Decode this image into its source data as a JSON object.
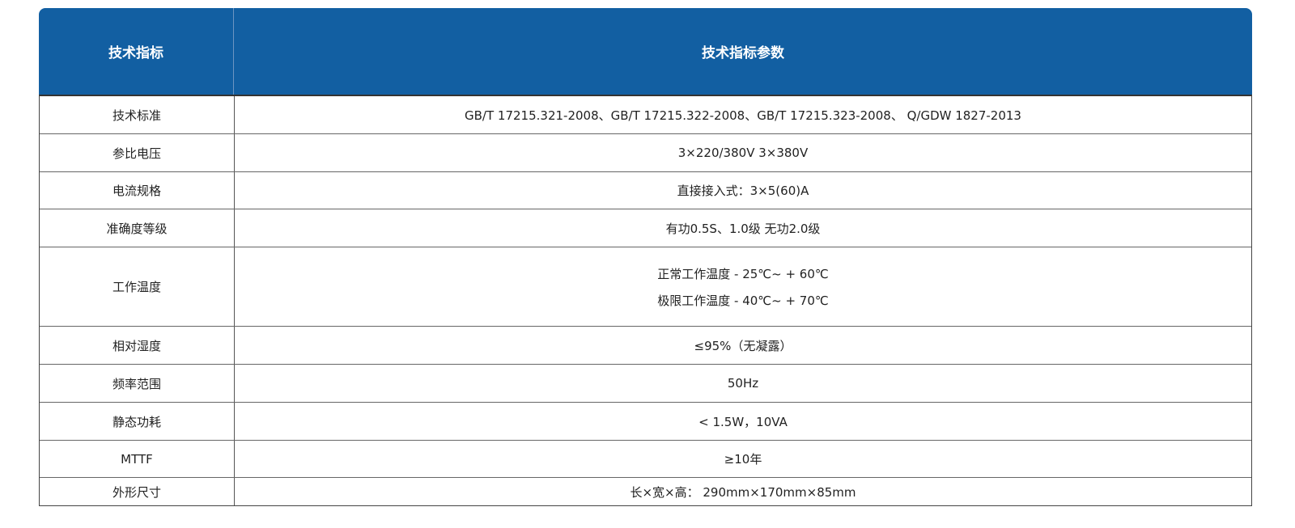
{
  "header": {
    "col1": "技术指标",
    "col2": "技术指标参数"
  },
  "colors": {
    "header_bg": "#125fa2"
  },
  "rows": [
    {
      "name": "技术标准",
      "values": [
        "GB/T 17215.321-2008、GB/T 17215.322-2008、GB/T 17215.323-2008、 Q/GDW 1827-2013"
      ]
    },
    {
      "name": "参比电压",
      "values": [
        "3×220/380V  3×380V"
      ]
    },
    {
      "name": "电流规格",
      "values": [
        "直接接入式：3×5(60)A"
      ]
    },
    {
      "name": "准确度等级",
      "values": [
        "有功0.5S、1.0级  无功2.0级"
      ]
    },
    {
      "name": "工作温度",
      "values": [
        "正常工作温度 - 25℃~ + 60℃",
        "极限工作温度 - 40℃~ + 70℃"
      ]
    },
    {
      "name": "相对湿度",
      "values": [
        "≤95%（无凝露）"
      ]
    },
    {
      "name": "频率范围",
      "values": [
        "50Hz"
      ]
    },
    {
      "name": "静态功耗",
      "values": [
        "< 1.5W，10VA"
      ]
    },
    {
      "name": "MTTF",
      "values": [
        "≥10年"
      ]
    },
    {
      "name": "外形尺寸",
      "values": [
        "长×宽×高： 290mm×170mm×85mm"
      ]
    }
  ]
}
